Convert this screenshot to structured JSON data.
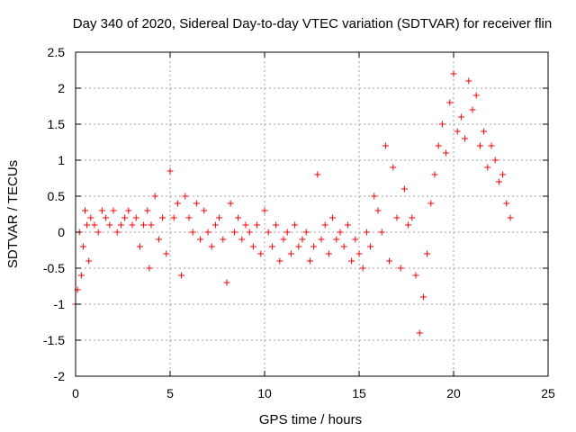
{
  "chart_data": {
    "type": "scatter",
    "title": "Day 340 of 2020, Sidereal Day-to-day VTEC variation (SDTVAR) for receiver flin",
    "xlabel": "GPS time / hours",
    "ylabel": "SDTVAR / TECUs",
    "xlim": [
      0,
      25
    ],
    "ylim": [
      -2,
      2.5
    ],
    "xticks": [
      0,
      5,
      10,
      15,
      20,
      25
    ],
    "xtick_labels": [
      "0",
      "5",
      "10",
      "15",
      "20",
      "25"
    ],
    "yticks": [
      -2,
      -1.5,
      -1,
      -0.5,
      0,
      0.5,
      1,
      1.5,
      2,
      2.5
    ],
    "ytick_labels": [
      "-2",
      "-1.5",
      "-1",
      "-0.5",
      "0",
      "0.5",
      "1",
      "1.5",
      "2",
      "2.5"
    ],
    "grid": true,
    "marker": "+",
    "color": "#ff0000",
    "series": [
      {
        "name": "SDTVAR",
        "x": [
          0.0,
          0.1,
          0.2,
          0.3,
          0.4,
          0.5,
          0.6,
          0.7,
          0.8,
          1.0,
          1.2,
          1.4,
          1.6,
          1.8,
          2.0,
          2.2,
          2.4,
          2.6,
          2.8,
          3.0,
          3.2,
          3.4,
          3.6,
          3.8,
          3.9,
          4.0,
          4.2,
          4.4,
          4.6,
          4.8,
          5.0,
          5.2,
          5.4,
          5.6,
          5.8,
          6.0,
          6.2,
          6.4,
          6.6,
          6.8,
          7.0,
          7.2,
          7.4,
          7.6,
          7.8,
          8.0,
          8.2,
          8.4,
          8.6,
          8.8,
          9.0,
          9.2,
          9.4,
          9.6,
          9.8,
          10.0,
          10.2,
          10.4,
          10.6,
          10.8,
          11.0,
          11.2,
          11.4,
          11.6,
          11.8,
          12.0,
          12.2,
          12.4,
          12.6,
          12.8,
          13.0,
          13.2,
          13.4,
          13.6,
          13.8,
          14.0,
          14.2,
          14.4,
          14.6,
          14.8,
          15.0,
          15.2,
          15.4,
          15.6,
          15.8,
          16.0,
          16.2,
          16.4,
          16.6,
          16.8,
          17.0,
          17.2,
          17.4,
          17.6,
          17.8,
          18.0,
          18.2,
          18.4,
          18.6,
          18.8,
          19.0,
          19.2,
          19.4,
          19.6,
          19.8,
          20.0,
          20.2,
          20.4,
          20.6,
          20.8,
          21.0,
          21.2,
          21.4,
          21.6,
          21.8,
          22.0,
          22.2,
          22.4,
          22.6,
          22.8,
          23.0
        ],
        "y": [
          -1.0,
          -0.8,
          0.0,
          -0.6,
          -0.2,
          0.3,
          0.1,
          -0.4,
          0.2,
          0.1,
          0.0,
          0.3,
          0.2,
          0.1,
          0.3,
          0.0,
          0.1,
          0.2,
          0.3,
          0.1,
          0.2,
          -0.2,
          0.1,
          0.3,
          -0.5,
          0.1,
          0.5,
          -0.1,
          0.2,
          -0.3,
          0.85,
          0.2,
          0.4,
          -0.6,
          0.5,
          0.2,
          0.0,
          0.4,
          -0.1,
          0.3,
          0.0,
          -0.2,
          0.1,
          0.2,
          -0.1,
          -0.7,
          0.4,
          0.0,
          0.2,
          -0.1,
          0.1,
          0.0,
          -0.2,
          0.1,
          -0.3,
          0.3,
          0.0,
          -0.2,
          0.1,
          -0.4,
          -0.1,
          0.0,
          -0.3,
          0.1,
          -0.2,
          -0.1,
          0.0,
          -0.4,
          -0.2,
          0.8,
          -0.1,
          0.1,
          -0.3,
          0.2,
          -0.1,
          0.0,
          -0.2,
          0.1,
          -0.4,
          -0.1,
          -0.3,
          -0.5,
          0.0,
          -0.2,
          0.5,
          0.3,
          0.0,
          1.2,
          -0.4,
          0.9,
          0.2,
          -0.5,
          0.6,
          0.1,
          0.2,
          -0.6,
          -1.4,
          -0.9,
          -0.3,
          0.4,
          0.8,
          1.2,
          1.5,
          1.1,
          1.8,
          2.2,
          1.4,
          1.6,
          1.3,
          2.1,
          1.7,
          1.9,
          1.2,
          1.4,
          0.9,
          1.2,
          1.0,
          0.7,
          0.8,
          0.4,
          0.2
        ]
      }
    ]
  }
}
